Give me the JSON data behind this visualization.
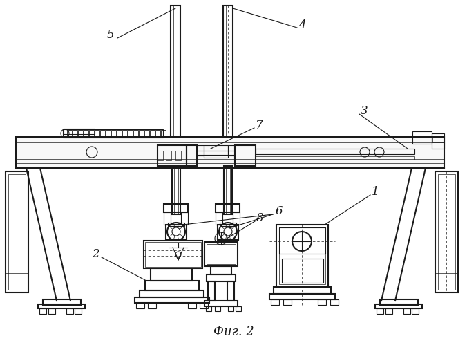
{
  "title": "Фиг. 2",
  "bg_color": "#ffffff",
  "line_color": "#1a1a1a",
  "fig_width": 6.76,
  "fig_height": 4.99,
  "dpi": 100
}
